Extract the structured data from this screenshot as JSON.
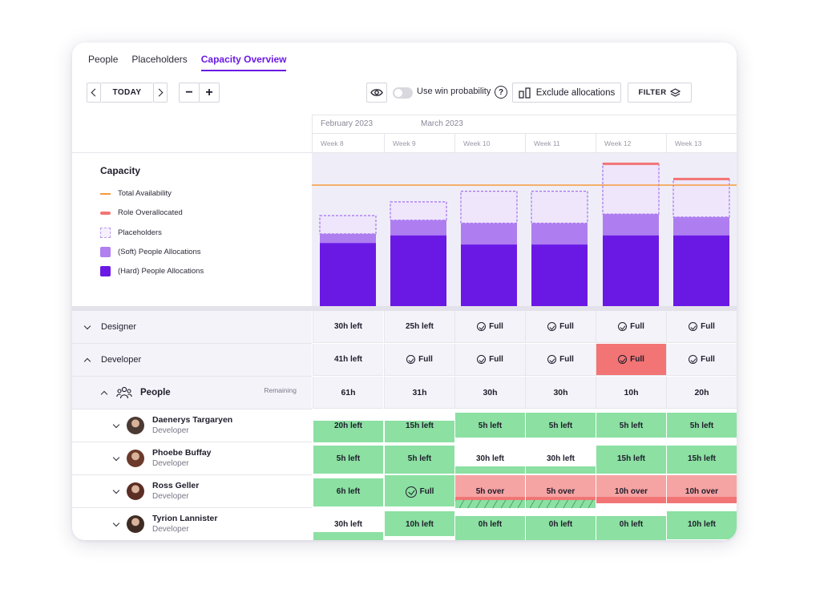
{
  "tabs": [
    {
      "label": "People",
      "active": false
    },
    {
      "label": "Placeholders",
      "active": false
    },
    {
      "label": "Capacity Overview",
      "active": true
    }
  ],
  "toolbar": {
    "today_label": "TODAY",
    "minus_label": "−",
    "plus_label": "+",
    "win_probability_label": "Use win probability",
    "help_label": "?",
    "exclude_label": "Exclude allocations",
    "filter_label": "FILTER"
  },
  "legend": {
    "title": "Capacity",
    "items": [
      {
        "label": "Total Availability",
        "color": "#f59a3c"
      },
      {
        "label": "Role Overallocated",
        "color": "#f27474"
      },
      {
        "label": "Placeholders",
        "color": "#efe6fb"
      },
      {
        "label": "(Soft) People Allocations",
        "color": "#b07ff0"
      },
      {
        "label": "(Hard) People Allocations",
        "color": "#6a19e5"
      }
    ]
  },
  "months": [
    "February 2023",
    "March 2023"
  ],
  "weeks": [
    "Week 8",
    "Week 9",
    "Week 10",
    "Week 11",
    "Week 12",
    "Week 13"
  ],
  "chart_data": {
    "type": "bar",
    "categories": [
      "Week 8",
      "Week 9",
      "Week 10",
      "Week 11",
      "Week 12",
      "Week 13"
    ],
    "ylim": [
      0,
      100
    ],
    "total_availability": 80,
    "series": [
      {
        "name": "(Hard) People Allocations",
        "values": [
          42,
          47,
          41,
          41,
          47,
          47
        ]
      },
      {
        "name": "(Soft) People Allocations",
        "values": [
          6,
          10,
          14,
          14,
          14,
          12
        ]
      },
      {
        "name": "Placeholders",
        "values": [
          12,
          12,
          21,
          21,
          33,
          25
        ]
      },
      {
        "name": "Role Overallocated",
        "values": [
          0,
          0,
          0,
          0,
          1.5,
          1.5
        ]
      }
    ]
  },
  "rows": {
    "designer": {
      "label": "Designer",
      "cells": [
        {
          "text": "30h left",
          "check": false,
          "status": "neutral"
        },
        {
          "text": "25h left",
          "check": false,
          "status": "neutral"
        },
        {
          "text": "Full",
          "check": true,
          "status": "neutral"
        },
        {
          "text": "Full",
          "check": true,
          "status": "neutral"
        },
        {
          "text": "Full",
          "check": true,
          "status": "neutral"
        },
        {
          "text": "Full",
          "check": true,
          "status": "neutral"
        }
      ]
    },
    "developer": {
      "label": "Developer",
      "cells": [
        {
          "text": "41h left",
          "check": false,
          "status": "neutral"
        },
        {
          "text": "Full",
          "check": true,
          "status": "neutral"
        },
        {
          "text": "Full",
          "check": true,
          "status": "neutral"
        },
        {
          "text": "Full",
          "check": true,
          "status": "neutral"
        },
        {
          "text": "Full",
          "check": true,
          "status": "over"
        },
        {
          "text": "Full",
          "check": true,
          "status": "neutral"
        }
      ]
    },
    "people": {
      "label": "People",
      "remaining_label": "Remaining",
      "cells": [
        "61h",
        "31h",
        "30h",
        "30h",
        "10h",
        "20h"
      ]
    }
  },
  "people": [
    {
      "name": "Daenerys Targaryen",
      "role": "Developer",
      "avatar_color": "#4a3a33",
      "cells": [
        {
          "text": "20h left",
          "type": "hatch-low"
        },
        {
          "text": "15h left",
          "type": "hatch-low"
        },
        {
          "text": "5h left",
          "type": "hatch-full"
        },
        {
          "text": "5h left",
          "type": "hatch-full"
        },
        {
          "text": "5h left",
          "type": "hatch-full"
        },
        {
          "text": "5h left",
          "type": "hatch-full"
        }
      ]
    },
    {
      "name": "Phoebe Buffay",
      "role": "Developer",
      "avatar_color": "#6b3a2a",
      "cells": [
        {
          "text": "5h left",
          "type": "green"
        },
        {
          "text": "5h left",
          "type": "green"
        },
        {
          "text": "30h left",
          "type": "green-low"
        },
        {
          "text": "30h left",
          "type": "green-low"
        },
        {
          "text": "15h left",
          "type": "green"
        },
        {
          "text": "15h left",
          "type": "green"
        }
      ]
    },
    {
      "name": "Ross Geller",
      "role": "Developer",
      "avatar_color": "#5a2e24",
      "cells": [
        {
          "text": "6h left",
          "type": "green"
        },
        {
          "text": "Full",
          "type": "green-check"
        },
        {
          "text": "5h over",
          "type": "red-hatch"
        },
        {
          "text": "5h over",
          "type": "red-hatch"
        },
        {
          "text": "10h over",
          "type": "red-over"
        },
        {
          "text": "10h over",
          "type": "red-over"
        }
      ]
    },
    {
      "name": "Tyrion Lannister",
      "role": "Developer",
      "avatar_color": "#3e2c24",
      "cells": [
        {
          "text": "30h left",
          "type": "hatch-tiny"
        },
        {
          "text": "10h left",
          "type": "hatch-full"
        },
        {
          "text": "0h left",
          "type": "green-top"
        },
        {
          "text": "0h left",
          "type": "green-top"
        },
        {
          "text": "0h left",
          "type": "green-top"
        },
        {
          "text": "10h left",
          "type": "green"
        }
      ]
    }
  ]
}
